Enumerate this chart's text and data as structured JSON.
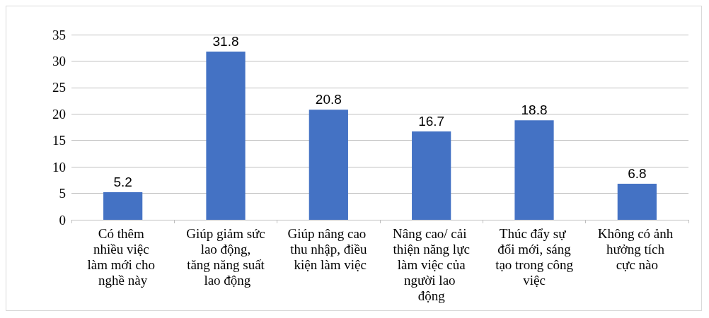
{
  "chart_data": {
    "type": "bar",
    "categories": [
      "Có thêm nhiều việc làm mới cho nghề này",
      "Giúp giảm sức lao động, tăng năng suất lao động",
      "Giúp nâng cao thu nhập, điều kiện làm việc",
      "Nâng cao/ cải thiện năng lực làm việc của người lao động",
      "Thúc đẩy sự đổi mới, sáng tạo trong công việc",
      "Không có ảnh hưởng tích cực nào"
    ],
    "values": [
      5.2,
      31.8,
      20.8,
      16.7,
      18.8,
      6.8
    ],
    "color": "#4472c4",
    "ylim": [
      0,
      35
    ],
    "yticks": [
      0,
      5,
      10,
      15,
      20,
      25,
      30,
      35
    ],
    "grid": "y",
    "data_labels": true
  }
}
